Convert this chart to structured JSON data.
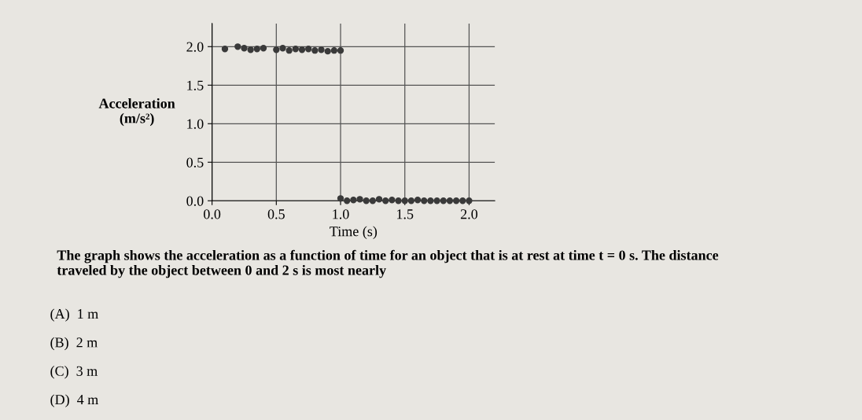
{
  "chart_data": {
    "type": "scatter",
    "xlabel": "Time (s)",
    "ylabel": "Acceleration\n(m/s²)",
    "series": [
      {
        "color": "#3a3a3a",
        "x": [
          0.1,
          0.2,
          0.25,
          0.3,
          0.35,
          0.4,
          0.5,
          0.55,
          0.6,
          0.65,
          0.7,
          0.75,
          0.8,
          0.85,
          0.9,
          0.95,
          1.0,
          1.0,
          1.05,
          1.1,
          1.15,
          1.2,
          1.25,
          1.3,
          1.35,
          1.4,
          1.45,
          1.5,
          1.55,
          1.6,
          1.65,
          1.7,
          1.75,
          1.8,
          1.85,
          1.9,
          1.95,
          2.0
        ],
        "values": [
          1.97,
          2.0,
          1.98,
          1.96,
          1.97,
          1.98,
          1.96,
          1.98,
          1.95,
          1.97,
          1.96,
          1.97,
          1.95,
          1.96,
          1.94,
          1.95,
          1.95,
          0.03,
          0.0,
          0.01,
          0.02,
          0.0,
          0.0,
          0.02,
          0.0,
          0.01,
          0.0,
          0.0,
          0.0,
          0.01,
          0.0,
          0.0,
          0.0,
          0.0,
          0.0,
          0.0,
          0.0,
          0.0
        ]
      }
    ],
    "xlim": [
      0,
      2.2
    ],
    "ylim": [
      0,
      2.3
    ],
    "xticks": [
      {
        "value": 0,
        "label": "0.0"
      },
      0.5,
      {
        "value": 1,
        "label": "1.0"
      },
      1.5,
      {
        "value": 2,
        "label": "2.0"
      }
    ],
    "yticks": [
      {
        "value": 0,
        "label": "0.0"
      },
      0.5,
      {
        "value": 1,
        "label": "1.0"
      },
      1.5,
      {
        "value": 2,
        "label": "2.0"
      }
    ],
    "grid": true,
    "marker": "circle",
    "legend": false,
    "annotations": [
      "The graph shows the acceleration as a function of time for an object that is at rest at time t = 0 s. The distance traveled by the object between 0 and 2 s is most nearly",
      "(A)  1 m",
      "(B)  2 m",
      "(C)  3 m",
      "(D)  4 m"
    ]
  }
}
